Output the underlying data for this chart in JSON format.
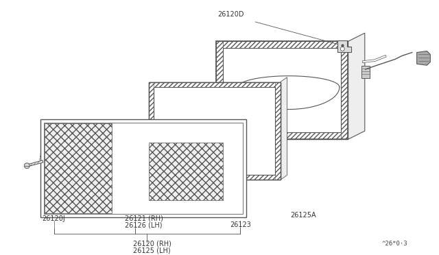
{
  "bg_color": "#ffffff",
  "line_color": "#555555",
  "label_color": "#333333",
  "font_size": 7.0,
  "part_num_text": "^26*0⋅3",
  "label_26120D": "26120D",
  "label_26120J": "26120J",
  "label_26121": "26121 (RH)",
  "label_26126": "26126 (LH)",
  "label_26123": "26123",
  "label_26125A": "26125A",
  "label_26120rh": "26120 (RH)",
  "label_26125lh": "26125 (LH)"
}
